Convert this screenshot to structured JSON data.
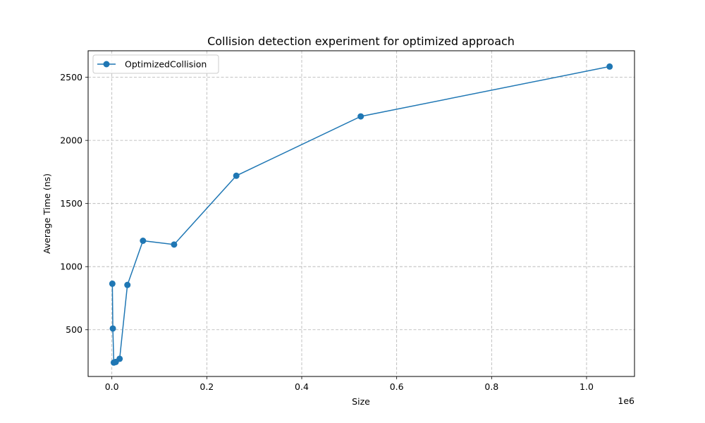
{
  "chart_data": {
    "type": "line",
    "title": "Collision detection experiment for optimized approach",
    "xlabel": "Size",
    "ylabel": "Average Time (ns)",
    "x_offset_label": "1e6",
    "xlim": [
      -50000,
      1101000
    ],
    "ylim": [
      130,
      2710
    ],
    "x_ticks": [
      0,
      200000,
      400000,
      600000,
      800000,
      1000000
    ],
    "x_tick_labels": [
      "0.0",
      "0.2",
      "0.4",
      "0.6",
      "0.8",
      "1.0"
    ],
    "y_ticks": [
      500,
      1000,
      1500,
      2000,
      2500
    ],
    "y_tick_labels": [
      "500",
      "1000",
      "1500",
      "2000",
      "2500"
    ],
    "grid": true,
    "legend_position": "upper-left",
    "series": [
      {
        "name": "OptimizedCollision",
        "color": "#1f77b4",
        "marker": "circle",
        "x": [
          1024,
          2048,
          4096,
          8192,
          16384,
          32768,
          65536,
          131072,
          262144,
          524288,
          1048576
        ],
        "y": [
          865,
          510,
          240,
          245,
          270,
          855,
          1205,
          1175,
          1720,
          2190,
          2585
        ]
      }
    ]
  }
}
